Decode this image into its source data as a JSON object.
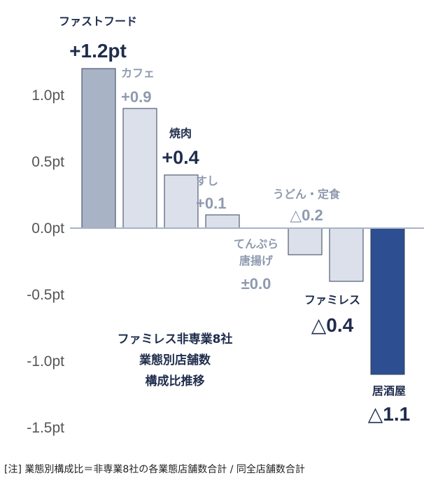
{
  "chart_data": {
    "type": "bar",
    "categories": [
      "ファストフード",
      "カフェ",
      "焼肉",
      "すし",
      "てんぷら・唐揚げ",
      "うどん・定食",
      "ファミレス",
      "居酒屋"
    ],
    "values": [
      1.2,
      0.9,
      0.4,
      0.1,
      0.0,
      -0.2,
      -0.4,
      -1.1
    ],
    "value_labels": [
      "+1.2pt",
      "+0.9",
      "+0.4",
      "+0.1",
      "±0.0",
      "△0.2",
      "△0.4",
      "△1.1"
    ],
    "category_label_lines": [
      [
        "ファストフード"
      ],
      [
        "カフェ"
      ],
      [
        "焼肉"
      ],
      [
        "すし"
      ],
      [
        "てんぷら",
        "唐揚げ"
      ],
      [
        "うどん・定食"
      ],
      [
        "ファミレス"
      ],
      [
        "居酒屋"
      ]
    ],
    "ylim": [
      -1.5,
      1.2
    ],
    "yticks": [
      1.0,
      0.5,
      0.0,
      -0.5,
      -1.0,
      -1.5
    ],
    "ytick_labels": [
      "1.0pt",
      "0.5pt",
      "0.0pt",
      "-0.5pt",
      "-1.0pt",
      "-1.5pt"
    ],
    "bar_colors": [
      "#a9b3c6",
      "#dbe0ea",
      "#dbe0ea",
      "#dbe0ea",
      "#dbe0ea",
      "#dbe0ea",
      "#dbe0ea",
      "#2d4f91"
    ],
    "label_colors": [
      "#1f2d4d",
      "#8f9ab0",
      "#1f2d4d",
      "#8f9ab0",
      "#8f9ab0",
      "#8f9ab0",
      "#1f2d4d",
      "#1f2d4d"
    ],
    "axis_color": "#a9b3c6",
    "grid": false,
    "annotation_lines": [
      "ファミレス非専業8社",
      "業態別店舗数",
      "構成比推移"
    ]
  },
  "footnote": "[注] 業態別構成比＝非専業8社の各業態店舗数合計 /  同全店舗数合計"
}
